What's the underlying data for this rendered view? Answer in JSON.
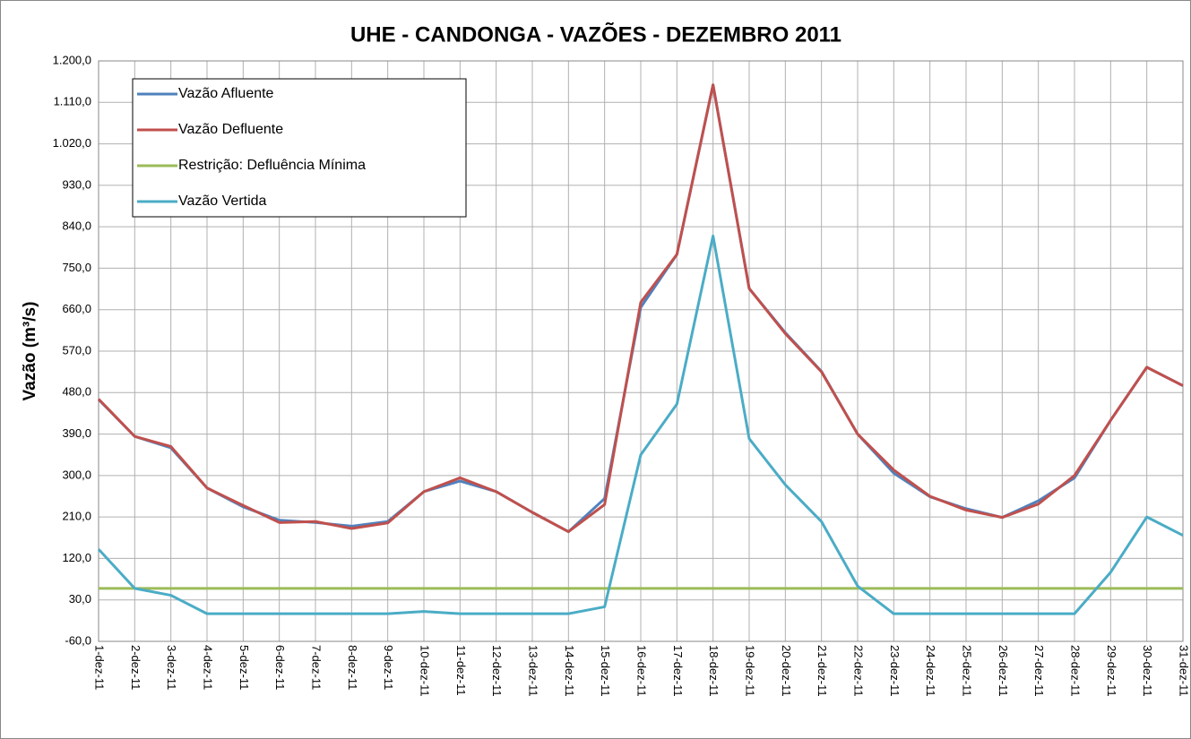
{
  "chart_data": {
    "type": "line",
    "title": "UHE - CANDONGA - VAZÕES -  DEZEMBRO 2011",
    "y_label": "Vazão (m³/s)",
    "categories": [
      "1-dez-11",
      "2-dez-11",
      "3-dez-11",
      "4-dez-11",
      "5-dez-11",
      "6-dez-11",
      "7-dez-11",
      "8-dez-11",
      "9-dez-11",
      "10-dez-11",
      "11-dez-11",
      "12-dez-11",
      "13-dez-11",
      "14-dez-11",
      "15-dez-11",
      "16-dez-11",
      "17-dez-11",
      "18-dez-11",
      "19-dez-11",
      "20-dez-11",
      "21-dez-11",
      "22-dez-11",
      "23-dez-11",
      "24-dez-11",
      "25-dez-11",
      "26-dez-11",
      "27-dez-11",
      "28-dez-11",
      "29-dez-11",
      "30-dez-11",
      "31-dez-11"
    ],
    "series": [
      {
        "name": "Vazão Afluente",
        "color": "#4f81bd",
        "values": [
          465,
          385,
          360,
          273,
          232,
          203,
          198,
          190,
          200,
          265,
          288,
          265,
          220,
          178,
          250,
          665,
          780,
          1148,
          706,
          610,
          526,
          390,
          305,
          254,
          228,
          209,
          245,
          295,
          420,
          535,
          495
        ]
      },
      {
        "name": "Vazão Defluente",
        "color": "#c0504d",
        "values": [
          466,
          385,
          363,
          273,
          235,
          198,
          200,
          185,
          197,
          265,
          295,
          265,
          220,
          178,
          237,
          676,
          780,
          1148,
          706,
          608,
          525,
          390,
          312,
          255,
          225,
          209,
          238,
          300,
          420,
          535,
          495
        ]
      },
      {
        "name": "Restrição: Defluência Mínima",
        "color": "#9bbb59",
        "values": [
          55,
          55,
          55,
          55,
          55,
          55,
          55,
          55,
          55,
          55,
          55,
          55,
          55,
          55,
          55,
          55,
          55,
          55,
          55,
          55,
          55,
          55,
          55,
          55,
          55,
          55,
          55,
          55,
          55,
          55,
          55
        ]
      },
      {
        "name": "Vazão Vertida",
        "color": "#4bacc6",
        "values": [
          140,
          55,
          40,
          0,
          0,
          0,
          0,
          0,
          0,
          5,
          0,
          0,
          0,
          0,
          15,
          345,
          455,
          820,
          380,
          280,
          200,
          60,
          0,
          0,
          0,
          0,
          0,
          0,
          90,
          210,
          170
        ]
      }
    ],
    "ylim": [
      -60,
      1200
    ],
    "yticks": [
      {
        "value": -60,
        "label": "-60,0"
      },
      {
        "value": 30,
        "label": "30,0"
      },
      {
        "value": 120,
        "label": "120,0"
      },
      {
        "value": 210,
        "label": "210,0"
      },
      {
        "value": 300,
        "label": "300,0"
      },
      {
        "value": 390,
        "label": "390,0"
      },
      {
        "value": 480,
        "label": "480,0"
      },
      {
        "value": 570,
        "label": "570,0"
      },
      {
        "value": 660,
        "label": "660,0"
      },
      {
        "value": 750,
        "label": "750,0"
      },
      {
        "value": 840,
        "label": "840,0"
      },
      {
        "value": 930,
        "label": "930,0"
      },
      {
        "value": 1020,
        "label": "1.020,0"
      },
      {
        "value": 1110,
        "label": "1.110,0"
      },
      {
        "value": 1200,
        "label": "1.200,0"
      }
    ],
    "grid": true
  }
}
